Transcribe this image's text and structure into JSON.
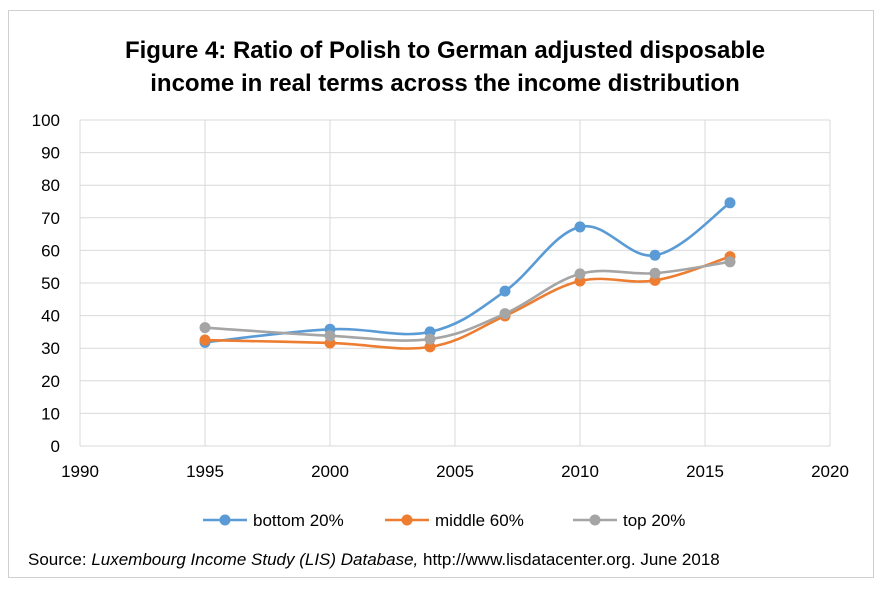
{
  "title_lines": [
    "Figure 4: Ratio of Polish to German adjusted disposable",
    "income in real terms across the income distribution"
  ],
  "source": {
    "prefix": "Source: ",
    "italic": "Luxembourg Income Study (LIS) Database,",
    "suffix": " http://www.lisdatacenter.org. June 2018"
  },
  "chart_data": {
    "type": "line",
    "title": "Figure 4: Ratio of Polish to German adjusted disposable income in real terms across the income distribution",
    "xlabel": "",
    "ylabel": "",
    "xlim": [
      1990,
      2020
    ],
    "ylim": [
      0,
      100
    ],
    "x_ticks": [
      1990,
      1995,
      2000,
      2005,
      2010,
      2015,
      2020
    ],
    "y_ticks": [
      0,
      10,
      20,
      30,
      40,
      50,
      60,
      70,
      80,
      90,
      100
    ],
    "grid": true,
    "legend_position": "bottom",
    "x": [
      1995,
      2000,
      2004,
      2007,
      2010,
      2013,
      2016
    ],
    "series": [
      {
        "name": "bottom 20%",
        "color": "#5b9bd5",
        "values": [
          31.8,
          35.8,
          35.0,
          47.5,
          67.2,
          58.5,
          74.6
        ]
      },
      {
        "name": "middle 60%",
        "color": "#ed7d31",
        "values": [
          32.5,
          31.6,
          30.4,
          39.9,
          50.6,
          50.8,
          58.1
        ]
      },
      {
        "name": "top 20%",
        "color": "#a5a5a5",
        "values": [
          36.3,
          33.8,
          32.8,
          40.6,
          52.8,
          53.0,
          56.5
        ]
      }
    ]
  }
}
